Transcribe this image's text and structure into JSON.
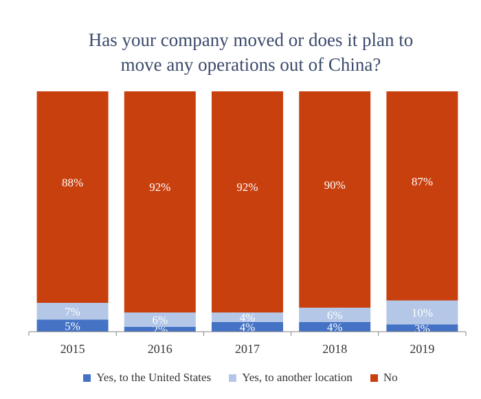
{
  "chart_data": {
    "type": "bar",
    "stacked": true,
    "title_lines": [
      "Has your company moved or does it plan to",
      "move any operations out of China?"
    ],
    "categories": [
      "2015",
      "2016",
      "2017",
      "2018",
      "2019"
    ],
    "series": [
      {
        "name": "Yes, to the United States",
        "color": "#4472c4",
        "values": [
          5,
          2,
          4,
          4,
          3
        ],
        "labels": [
          "5%",
          "2%",
          "4%",
          "4%",
          "3%"
        ]
      },
      {
        "name": "Yes, to another location",
        "color": "#b4c7e7",
        "values": [
          7,
          6,
          4,
          6,
          10
        ],
        "labels": [
          "7%",
          "6%",
          "4%",
          "6%",
          "10%"
        ]
      },
      {
        "name": "No",
        "color": "#c9400f",
        "values": [
          88,
          92,
          92,
          90,
          87
        ],
        "labels": [
          "88%",
          "92%",
          "92%",
          "90%",
          "87%"
        ]
      }
    ],
    "ylim": [
      0,
      100
    ],
    "xlabel": "",
    "ylabel": "",
    "legend_position": "bottom"
  }
}
